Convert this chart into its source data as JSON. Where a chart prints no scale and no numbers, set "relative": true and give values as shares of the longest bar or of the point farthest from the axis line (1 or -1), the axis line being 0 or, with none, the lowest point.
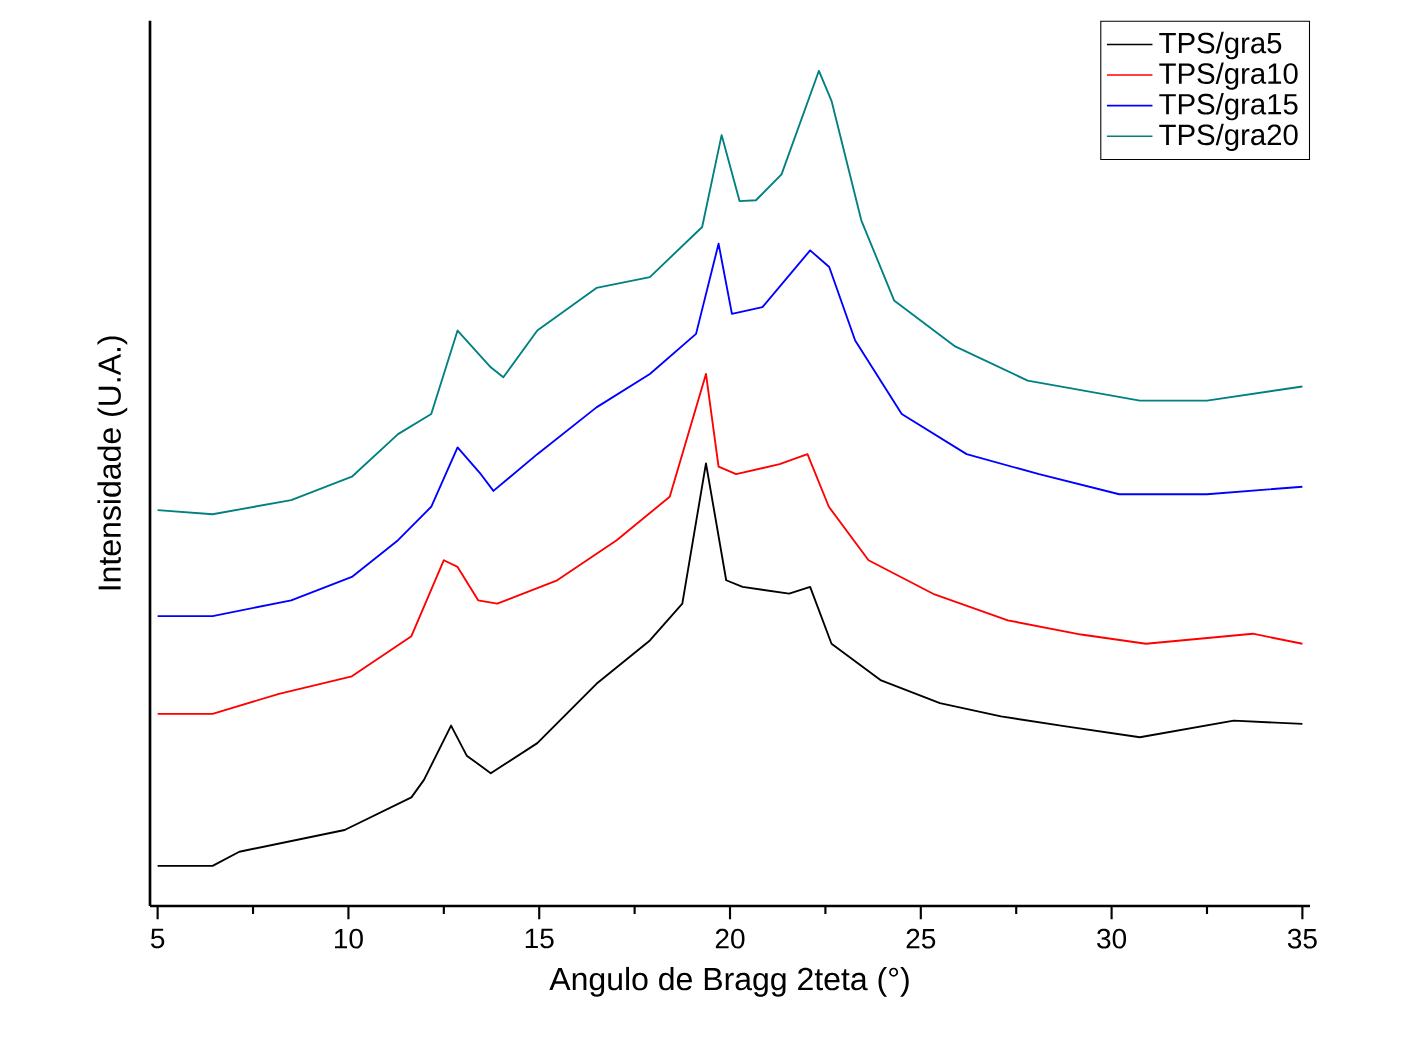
{
  "chart_data": {
    "type": "line",
    "xlabel": "Angulo de Bragg 2teta (°)",
    "ylabel": "Intensidade (U.A.)",
    "relative": true,
    "xlim": [
      4.8,
      35.2
    ],
    "xticks": [
      5,
      10,
      15,
      20,
      25,
      30,
      35
    ],
    "legend": "top right",
    "grid": false,
    "marker": "none",
    "line_style": "solid",
    "series": [
      {
        "name": "TPS/gra5",
        "color": "#000000",
        "x": [
          5,
          6.44,
          7.14,
          9.9,
          11.65,
          11.98,
          12.69,
          13.1,
          13.73,
          14.95,
          16.5,
          17.9,
          18.75,
          19.37,
          19.9,
          20.33,
          21.55,
          22.1,
          22.66,
          23.96,
          25.5,
          27.1,
          28.8,
          30.74,
          33.2,
          35
        ],
        "values": [
          0.048,
          0.048,
          0.065,
          0.091,
          0.13,
          0.151,
          0.216,
          0.18,
          0.159,
          0.195,
          0.266,
          0.318,
          0.362,
          0.53,
          0.39,
          0.382,
          0.374,
          0.382,
          0.314,
          0.27,
          0.243,
          0.227,
          0.215,
          0.202,
          0.222,
          0.218
        ]
      },
      {
        "name": "TPS/gra10",
        "color": "#ff0000",
        "x": [
          5,
          6.44,
          8.18,
          10.09,
          11.65,
          12.5,
          12.86,
          13.4,
          13.9,
          15.47,
          17.03,
          18.42,
          19.37,
          19.7,
          20.16,
          21.3,
          22.03,
          22.59,
          23.63,
          25.36,
          27.28,
          29.2,
          30.9,
          33.7,
          35
        ],
        "values": [
          0.23,
          0.23,
          0.254,
          0.275,
          0.323,
          0.414,
          0.406,
          0.366,
          0.362,
          0.39,
          0.438,
          0.49,
          0.637,
          0.526,
          0.517,
          0.529,
          0.541,
          0.478,
          0.414,
          0.373,
          0.342,
          0.325,
          0.314,
          0.326,
          0.314
        ]
      },
      {
        "name": "TPS/gra15",
        "color": "#0000ff",
        "x": [
          5,
          6.44,
          8.5,
          10.09,
          11.3,
          12.17,
          12.86,
          13.47,
          13.8,
          14.95,
          16.5,
          17.9,
          19.11,
          19.7,
          20.05,
          20.85,
          22.1,
          22.6,
          23.28,
          24.5,
          26.2,
          28.1,
          30.2,
          32.5,
          35
        ],
        "values": [
          0.347,
          0.347,
          0.366,
          0.394,
          0.438,
          0.478,
          0.549,
          0.517,
          0.497,
          0.541,
          0.597,
          0.637,
          0.685,
          0.793,
          0.709,
          0.717,
          0.785,
          0.765,
          0.677,
          0.589,
          0.541,
          0.517,
          0.493,
          0.493,
          0.502
        ]
      },
      {
        "name": "TPS/gra20",
        "color": "#008080",
        "x": [
          5,
          6.44,
          8.5,
          10.09,
          11.3,
          12.17,
          12.86,
          13.73,
          14.06,
          14.95,
          16.5,
          17.9,
          19.27,
          19.78,
          20.25,
          20.68,
          21.35,
          22.33,
          22.66,
          23.44,
          24.3,
          25.9,
          27.8,
          30.74,
          32.5,
          35
        ],
        "values": [
          0.474,
          0.469,
          0.486,
          0.514,
          0.565,
          0.589,
          0.689,
          0.645,
          0.633,
          0.689,
          0.74,
          0.753,
          0.813,
          0.923,
          0.844,
          0.845,
          0.876,
          1,
          0.964,
          0.821,
          0.725,
          0.67,
          0.629,
          0.605,
          0.605,
          0.622
        ]
      }
    ]
  }
}
